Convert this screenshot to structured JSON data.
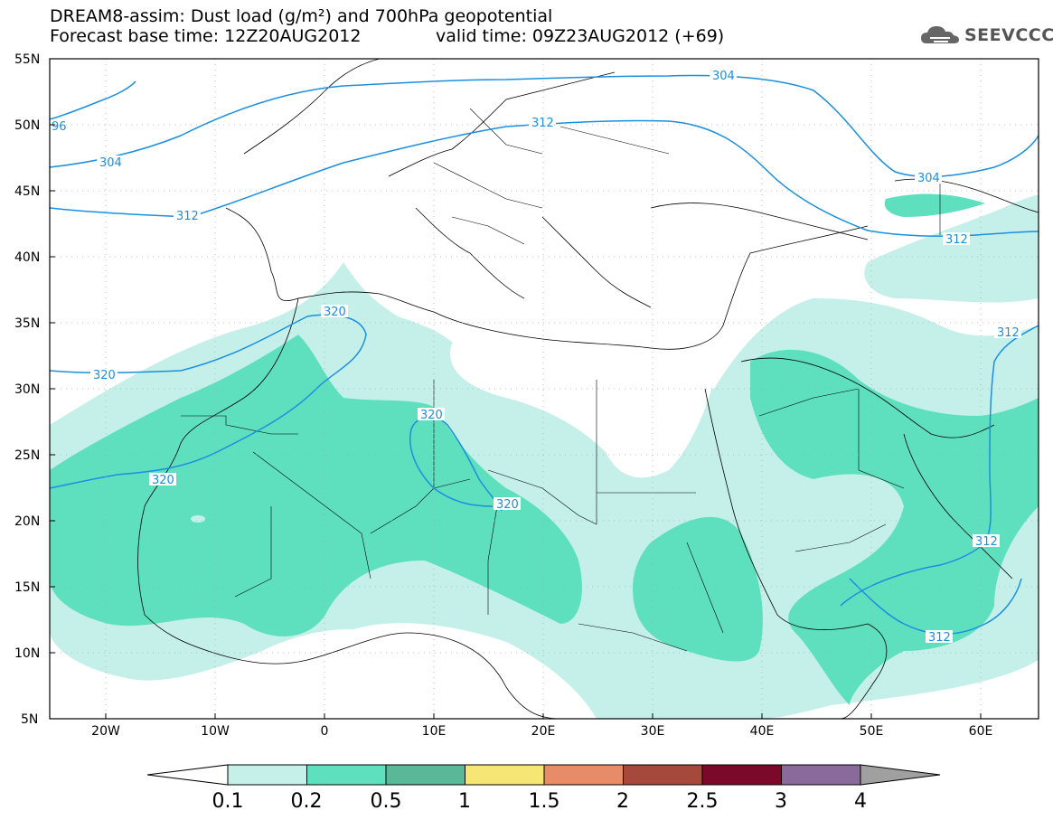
{
  "header": {
    "title": "DREAM8-assim: Dust load (g/m²) and 700hPa geopotential",
    "base_time": "Forecast base time: 12Z20AUG2012",
    "valid_time": "valid time: 09Z23AUG2012 (+69)",
    "logo_text": "SEEVCCC",
    "logo_icon": "cloud-logo-icon"
  },
  "map": {
    "lon_range": [
      -25,
      65
    ],
    "lat_range": [
      5,
      55
    ],
    "lat_labels": [
      "55N",
      "50N",
      "45N",
      "40N",
      "35N",
      "30N",
      "25N",
      "20N",
      "15N",
      "10N",
      "5N"
    ],
    "lon_labels": [
      "20W",
      "10W",
      "0",
      "10E",
      "20E",
      "30E",
      "40E",
      "50E",
      "60E"
    ],
    "contour_labels": [
      "304",
      "312",
      "304",
      "312",
      "96",
      "304",
      "312",
      "320",
      "320",
      "320",
      "320",
      "320",
      "312",
      "312",
      "312"
    ],
    "colors": {
      "dust_0_1": "#c5f0ea",
      "dust_0_2": "#5ee0bf",
      "contour": "#1a8fe0",
      "border": "#000000"
    }
  },
  "colorbar": {
    "labels": [
      "0.1",
      "0.2",
      "0.5",
      "1",
      "1.5",
      "2",
      "2.5",
      "3",
      "4"
    ],
    "colors": [
      "#c5f0ea",
      "#5ee0bf",
      "#5ab797",
      "#f5e675",
      "#e78b68",
      "#a4493b",
      "#7b0a2a",
      "#8a6a9a"
    ],
    "under_color": "#ffffff",
    "over_color": "#a0a0a0"
  }
}
